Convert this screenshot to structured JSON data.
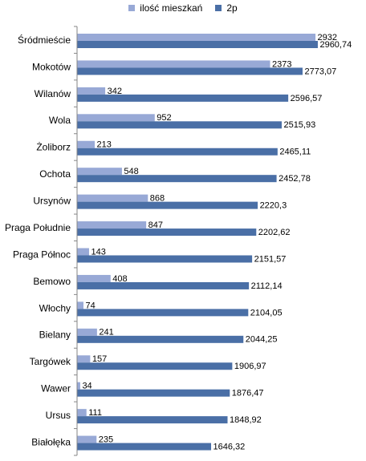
{
  "chart_data": {
    "type": "bar",
    "orientation": "horizontal",
    "categories": [
      "Śródmieście",
      "Mokotów",
      "Wilanów",
      "Wola",
      "Żoliborz",
      "Ochota",
      "Ursynów",
      "Praga Południe",
      "Praga Północ",
      "Bemowo",
      "Włochy",
      "Bielany",
      "Targówek",
      "Wawer",
      "Ursus",
      "Białołęka"
    ],
    "series": [
      {
        "name": "ilość mieszkań",
        "color": "#98a9d6",
        "values": [
          2932,
          2373,
          342,
          952,
          213,
          548,
          868,
          847,
          143,
          408,
          74,
          241,
          157,
          34,
          111,
          235
        ],
        "labels": [
          "2932",
          "2373",
          "342",
          "952",
          "213",
          "548",
          "868",
          "847",
          "143",
          "408",
          "74",
          "241",
          "157",
          "34",
          "111",
          "235"
        ]
      },
      {
        "name": "2p",
        "color": "#4a6fa6",
        "values": [
          2960.74,
          2773.07,
          2596.57,
          2515.93,
          2465.11,
          2452.78,
          2220.3,
          2202.62,
          2151.57,
          2112.14,
          2104.05,
          2044.25,
          1906.97,
          1876.47,
          1848.92,
          1646.32
        ],
        "labels": [
          "2960,74",
          "2773,07",
          "2596,57",
          "2515,93",
          "2465,11",
          "2452,78",
          "2220,3",
          "2202,62",
          "2151,57",
          "2112,14",
          "2104,05",
          "2044,25",
          "1906,97",
          "1876,47",
          "1848,92",
          "1646,32"
        ]
      }
    ],
    "xlim": [
      0,
      3500
    ],
    "grid": false,
    "legend_position": "top"
  }
}
